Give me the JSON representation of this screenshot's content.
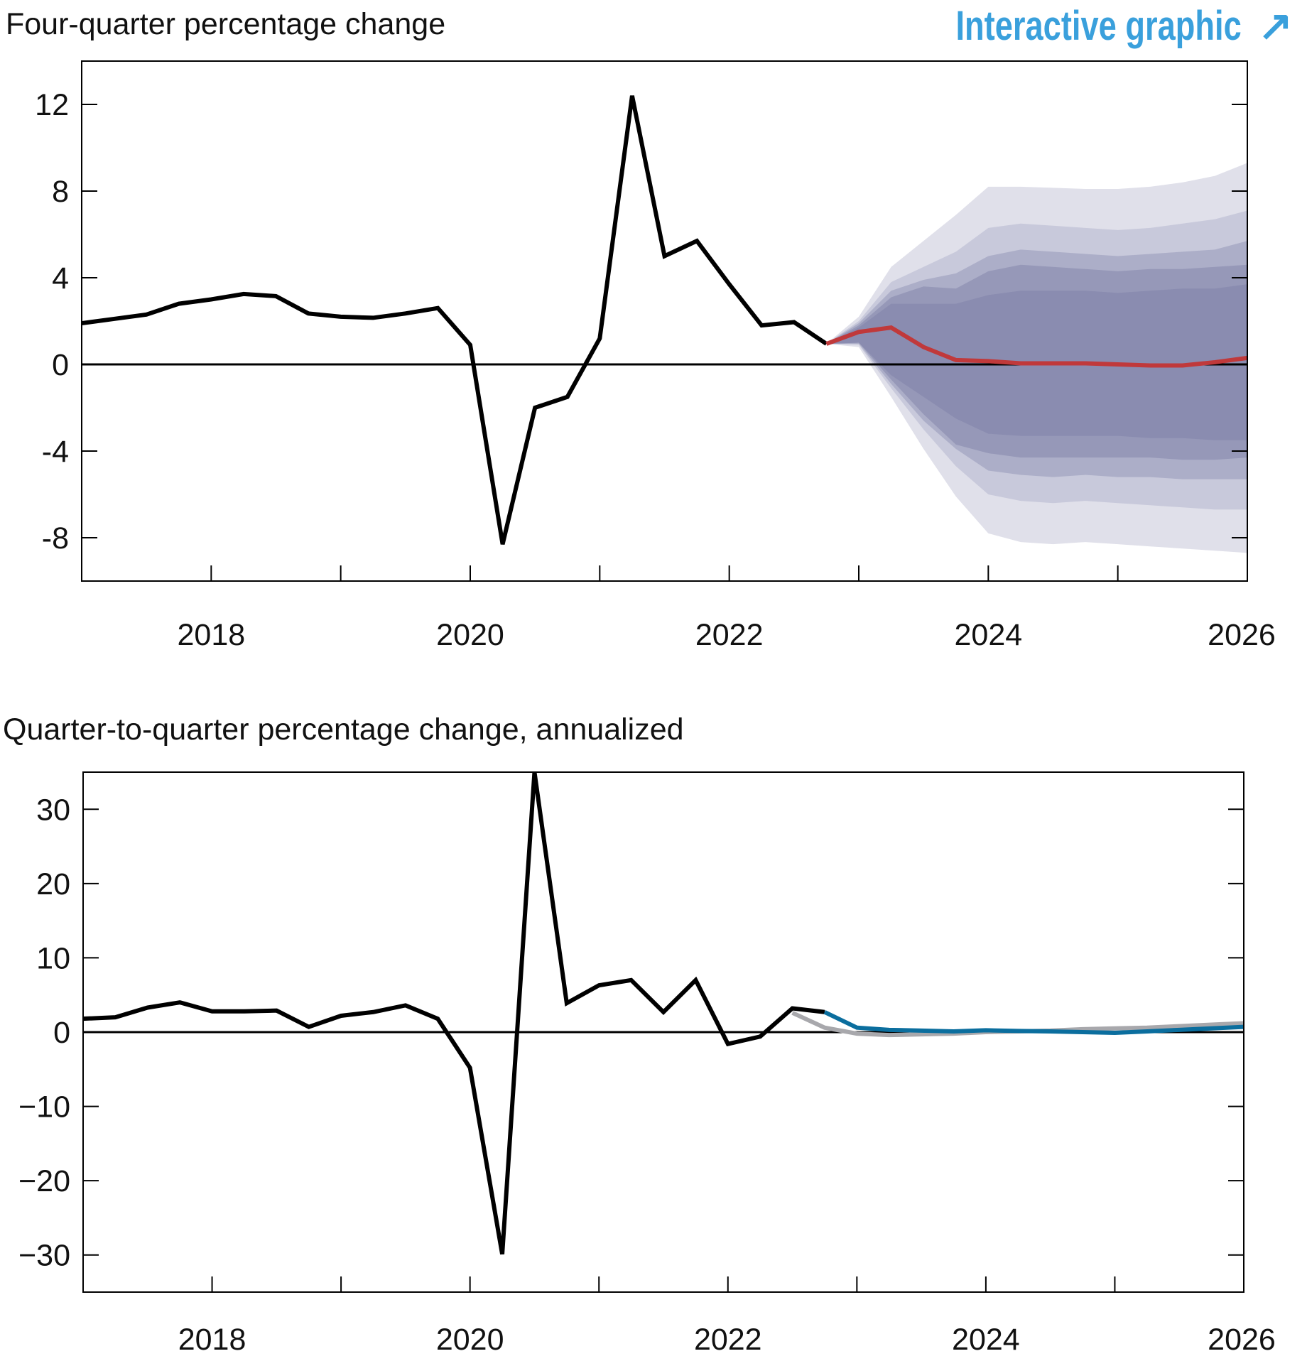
{
  "link": {
    "label": "Interactive graphic",
    "icon": "arrow-up-right-icon",
    "color": "#3aa0dc"
  },
  "chart_data": [
    {
      "type": "line",
      "title": "Four-quarter percentage change",
      "xlim": [
        2017,
        2026
      ],
      "ylim": [
        -10,
        14
      ],
      "xticks": [
        "2018",
        "2020",
        "2022",
        "2024",
        "2026"
      ],
      "yticks": [
        "12",
        "8",
        "4",
        "0",
        "-4",
        "-8"
      ],
      "grid": false,
      "series": [
        {
          "role": "history",
          "color": "#000000",
          "x": [
            2017,
            2017.25,
            2017.5,
            2017.75,
            2018,
            2018.25,
            2018.5,
            2018.75,
            2019,
            2019.25,
            2019.5,
            2019.75,
            2020,
            2020.25,
            2020.5,
            2020.75,
            2021,
            2021.25,
            2021.5,
            2021.75,
            2022,
            2022.25,
            2022.5,
            2022.75
          ],
          "y": [
            1.9,
            2.1,
            2.3,
            2.8,
            3.0,
            3.25,
            3.15,
            2.35,
            2.2,
            2.15,
            2.35,
            2.6,
            0.9,
            -8.3,
            -2.0,
            -1.5,
            1.2,
            12.4,
            5.0,
            5.7,
            3.7,
            1.8,
            1.95,
            0.95
          ]
        },
        {
          "role": "forecast",
          "color": "#c0393b",
          "x": [
            2022.75,
            2023,
            2023.25,
            2023.5,
            2023.75,
            2024,
            2024.25,
            2024.5,
            2024.75,
            2025,
            2025.25,
            2025.5,
            2025.75,
            2026
          ],
          "y": [
            0.95,
            1.5,
            1.7,
            0.8,
            0.2,
            0.15,
            0.05,
            0.05,
            0.05,
            0.0,
            -0.05,
            -0.05,
            0.1,
            0.3
          ]
        }
      ],
      "fan": {
        "x": [
          2022.75,
          2023,
          2023.25,
          2023.5,
          2023.75,
          2024,
          2024.25,
          2024.5,
          2024.75,
          2025,
          2025.25,
          2025.5,
          2025.75,
          2026
        ],
        "colors": [
          "#e0e0ea",
          "#c8c9db",
          "#acaec8",
          "#9698b8",
          "#8a8cb0"
        ],
        "bands": [
          {
            "upper": [
              0.95,
              2.2,
              4.5,
              5.7,
              6.9,
              8.2,
              8.2,
              8.15,
              8.1,
              8.1,
              8.2,
              8.4,
              8.7,
              9.3
            ],
            "lower": [
              0.95,
              0.8,
              -1.5,
              -3.9,
              -6.1,
              -7.8,
              -8.2,
              -8.3,
              -8.2,
              -8.3,
              -8.4,
              -8.5,
              -8.6,
              -8.7
            ]
          },
          {
            "upper": [
              0.95,
              2.0,
              3.8,
              4.5,
              5.2,
              6.3,
              6.5,
              6.4,
              6.3,
              6.2,
              6.3,
              6.5,
              6.7,
              7.1
            ],
            "lower": [
              0.95,
              0.9,
              -1.1,
              -3.0,
              -4.7,
              -6.0,
              -6.3,
              -6.4,
              -6.3,
              -6.4,
              -6.5,
              -6.6,
              -6.7,
              -6.7
            ]
          },
          {
            "upper": [
              0.95,
              1.9,
              3.4,
              3.9,
              4.2,
              5.0,
              5.3,
              5.2,
              5.1,
              5.0,
              5.1,
              5.2,
              5.3,
              5.7
            ],
            "lower": [
              0.95,
              0.95,
              -0.9,
              -2.6,
              -3.9,
              -4.9,
              -5.1,
              -5.2,
              -5.1,
              -5.2,
              -5.2,
              -5.3,
              -5.3,
              -5.3
            ]
          },
          {
            "upper": [
              0.95,
              1.8,
              3.1,
              3.6,
              3.5,
              4.3,
              4.6,
              4.5,
              4.4,
              4.3,
              4.4,
              4.4,
              4.5,
              4.6
            ],
            "lower": [
              0.95,
              1.0,
              -0.7,
              -2.3,
              -3.7,
              -4.1,
              -4.3,
              -4.3,
              -4.3,
              -4.3,
              -4.3,
              -4.4,
              -4.4,
              -4.3
            ]
          },
          {
            "upper": [
              0.95,
              1.7,
              2.8,
              2.8,
              2.8,
              3.2,
              3.4,
              3.4,
              3.4,
              3.3,
              3.4,
              3.5,
              3.5,
              3.7
            ],
            "lower": [
              0.95,
              1.0,
              -0.5,
              -1.5,
              -2.5,
              -3.2,
              -3.3,
              -3.3,
              -3.3,
              -3.3,
              -3.4,
              -3.4,
              -3.5,
              -3.5
            ]
          }
        ]
      }
    },
    {
      "type": "line",
      "title": "Quarter-to-quarter percentage change, annualized",
      "xlim": [
        2017,
        2026
      ],
      "ylim": [
        -35,
        35
      ],
      "xticks": [
        "2018",
        "2020",
        "2022",
        "2024",
        "2026"
      ],
      "yticks": [
        "30",
        "20",
        "10",
        "0",
        "−10",
        "−20",
        "−30"
      ],
      "grid": false,
      "series": [
        {
          "role": "previous-forecast",
          "color": "#a8a8ac",
          "x": [
            2022.5,
            2022.75,
            2023,
            2023.25,
            2023.5,
            2023.75,
            2024,
            2024.25,
            2024.5,
            2024.75,
            2025,
            2025.25,
            2025.5,
            2025.75,
            2026
          ],
          "y": [
            2.6,
            0.6,
            -0.2,
            -0.4,
            -0.3,
            -0.2,
            0.0,
            0.1,
            0.2,
            0.4,
            0.5,
            0.6,
            0.8,
            1.0,
            1.2
          ]
        },
        {
          "role": "history",
          "color": "#000000",
          "x": [
            2017,
            2017.25,
            2017.5,
            2017.75,
            2018,
            2018.25,
            2018.5,
            2018.75,
            2019,
            2019.25,
            2019.5,
            2019.75,
            2020,
            2020.25,
            2020.5,
            2020.75,
            2021,
            2021.25,
            2021.5,
            2021.75,
            2022,
            2022.25,
            2022.5,
            2022.75
          ],
          "y": [
            1.8,
            2.0,
            3.3,
            4.0,
            2.8,
            2.8,
            2.9,
            0.7,
            2.2,
            2.7,
            3.6,
            1.8,
            -4.8,
            -29.9,
            35.0,
            3.9,
            6.3,
            7.0,
            2.7,
            7.0,
            -1.6,
            -0.6,
            3.2,
            2.7
          ]
        },
        {
          "role": "forecast",
          "color": "#0b6e9e",
          "x": [
            2022.75,
            2023,
            2023.25,
            2023.5,
            2023.75,
            2024,
            2024.25,
            2024.5,
            2024.75,
            2025,
            2025.25,
            2025.5,
            2025.75,
            2026
          ],
          "y": [
            2.7,
            0.6,
            0.3,
            0.2,
            0.1,
            0.25,
            0.15,
            0.1,
            0.0,
            -0.1,
            0.1,
            0.3,
            0.5,
            0.7
          ]
        }
      ]
    }
  ]
}
